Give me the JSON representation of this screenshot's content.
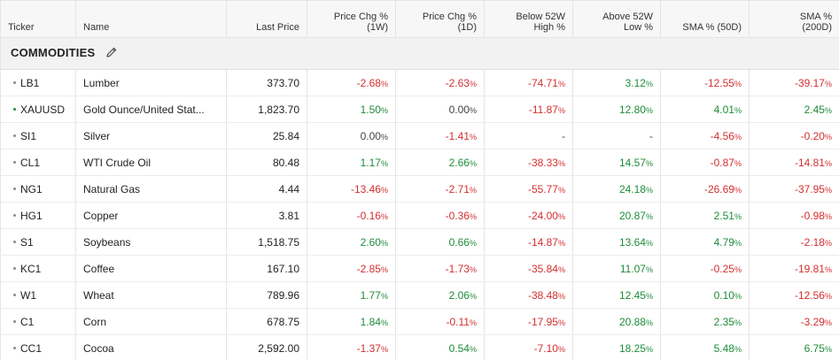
{
  "columns": {
    "ticker": "Ticker",
    "name": "Name",
    "last_price": "Last Price",
    "chg_1w_line1": "Price Chg %",
    "chg_1w_line2": "(1W)",
    "chg_1d_line1": "Price Chg %",
    "chg_1d_line2": "(1D)",
    "below_52w_line1": "Below 52W",
    "below_52w_line2": "High %",
    "above_52w_line1": "Above 52W",
    "above_52w_line2": "Low %",
    "sma50": "SMA % (50D)",
    "sma200_line1": "SMA %",
    "sma200_line2": "(200D)"
  },
  "section": {
    "title": "COMMODITIES",
    "edit_icon": "pencil-icon"
  },
  "colors": {
    "negative": "#d32f2f",
    "positive": "#1e8c3a",
    "neutral": "#444444"
  },
  "rows": [
    {
      "ticker": "LB1",
      "name": "Lumber",
      "last": "373.70",
      "w1": "-2.68",
      "d1": "-2.63",
      "below": "-74.71",
      "above": "3.12",
      "sma50": "-12.55",
      "sma200": "-39.17",
      "dot": "gray"
    },
    {
      "ticker": "XAUUSD",
      "name": "Gold Ounce/United Stat...",
      "last": "1,823.70",
      "w1": "1.50",
      "d1": "0.00",
      "below": "-11.87",
      "above": "12.80",
      "sma50": "4.01",
      "sma200": "2.45",
      "dot": "green"
    },
    {
      "ticker": "SI1",
      "name": "Silver",
      "last": "25.84",
      "w1": "0.00",
      "d1": "-1.41",
      "below": "-",
      "above": "-",
      "sma50": "-4.56",
      "sma200": "-0.20",
      "dot": "gray"
    },
    {
      "ticker": "CL1",
      "name": "WTI Crude Oil",
      "last": "80.48",
      "w1": "1.17",
      "d1": "2.66",
      "below": "-38.33",
      "above": "14.57",
      "sma50": "-0.87",
      "sma200": "-14.81",
      "dot": "gray"
    },
    {
      "ticker": "NG1",
      "name": "Natural Gas",
      "last": "4.44",
      "w1": "-13.46",
      "d1": "-2.71",
      "below": "-55.77",
      "above": "24.18",
      "sma50": "-26.69",
      "sma200": "-37.95",
      "dot": "gray"
    },
    {
      "ticker": "HG1",
      "name": "Copper",
      "last": "3.81",
      "w1": "-0.16",
      "d1": "-0.36",
      "below": "-24.00",
      "above": "20.87",
      "sma50": "2.51",
      "sma200": "-0.98",
      "dot": "gray"
    },
    {
      "ticker": "S1",
      "name": "Soybeans",
      "last": "1,518.75",
      "w1": "2.60",
      "d1": "0.66",
      "below": "-14.87",
      "above": "13.64",
      "sma50": "4.79",
      "sma200": "-2.18",
      "dot": "gray"
    },
    {
      "ticker": "KC1",
      "name": "Coffee",
      "last": "167.10",
      "w1": "-2.85",
      "d1": "-1.73",
      "below": "-35.84",
      "above": "11.07",
      "sma50": "-0.25",
      "sma200": "-19.81",
      "dot": "gray"
    },
    {
      "ticker": "W1",
      "name": "Wheat",
      "last": "789.96",
      "w1": "1.77",
      "d1": "2.06",
      "below": "-38.48",
      "above": "12.45",
      "sma50": "0.10",
      "sma200": "-12.56",
      "dot": "gray"
    },
    {
      "ticker": "C1",
      "name": "Corn",
      "last": "678.75",
      "w1": "1.84",
      "d1": "-0.11",
      "below": "-17.95",
      "above": "20.88",
      "sma50": "2.35",
      "sma200": "-3.29",
      "dot": "gray"
    },
    {
      "ticker": "CC1",
      "name": "Cocoa",
      "last": "2,592.00",
      "w1": "-1.37",
      "d1": "0.54",
      "below": "-7.10",
      "above": "18.25",
      "sma50": "5.48",
      "sma200": "6.75",
      "dot": "gray"
    }
  ]
}
